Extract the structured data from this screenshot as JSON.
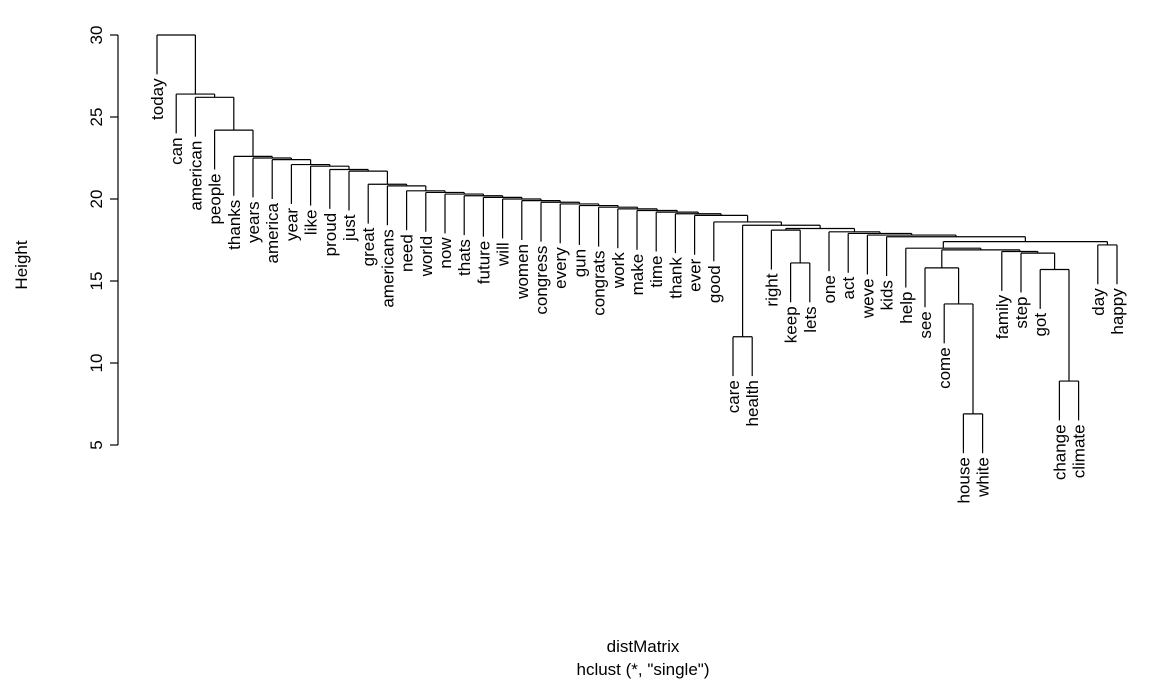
{
  "chart_data": {
    "type": "dendrogram",
    "method": "hclust (*, \"single\")",
    "xlabel": "distMatrix",
    "subtitle": "hclust (*, \"single\")",
    "ylabel": "Height",
    "yticks": [
      5,
      10,
      15,
      20,
      25,
      30
    ],
    "ylim": [
      5,
      30
    ],
    "grid": false,
    "legend": "none",
    "leaf_order": [
      "today",
      "can",
      "american",
      "people",
      "thanks",
      "years",
      "america",
      "year",
      "like",
      "proud",
      "just",
      "great",
      "americans",
      "need",
      "world",
      "now",
      "thats",
      "future",
      "will",
      "women",
      "congress",
      "every",
      "gun",
      "congrats",
      "work",
      "make",
      "time",
      "thank",
      "ever",
      "good",
      "care",
      "health",
      "right",
      "keep",
      "lets",
      "one",
      "act",
      "weve",
      "kids",
      "help",
      "see",
      "come",
      "house",
      "white",
      "family",
      "step",
      "got",
      "change",
      "climate",
      "day",
      "happy"
    ],
    "merges": [
      {
        "id": "m1",
        "left": "house",
        "right": "white",
        "height": 6.9
      },
      {
        "id": "m2",
        "left": "change",
        "right": "climate",
        "height": 8.9
      },
      {
        "id": "m3",
        "left": "care",
        "right": "health",
        "height": 11.6
      },
      {
        "id": "m4",
        "left": "come",
        "right": "m1",
        "height": 13.6
      },
      {
        "id": "m5",
        "left": "see",
        "right": "m4",
        "height": 15.8
      },
      {
        "id": "m6",
        "left": "got",
        "right": "m2",
        "height": 15.7
      },
      {
        "id": "m7",
        "left": "keep",
        "right": "lets",
        "height": 16.1
      },
      {
        "id": "m8",
        "left": "step",
        "right": "m6",
        "height": 16.7
      },
      {
        "id": "m9",
        "left": "family",
        "right": "m8",
        "height": 16.8
      },
      {
        "id": "m10",
        "left": "m5",
        "right": "m9",
        "height": 16.9
      },
      {
        "id": "m11",
        "left": "help",
        "right": "m10",
        "height": 17.0
      },
      {
        "id": "m12",
        "left": "day",
        "right": "happy",
        "height": 17.2
      },
      {
        "id": "m13",
        "left": "m11",
        "right": "m12",
        "height": 17.4
      },
      {
        "id": "m14",
        "left": "kids",
        "right": "m13",
        "height": 17.7
      },
      {
        "id": "m15",
        "left": "weve",
        "right": "m14",
        "height": 17.8
      },
      {
        "id": "m16",
        "left": "act",
        "right": "m15",
        "height": 17.9
      },
      {
        "id": "m17",
        "left": "one",
        "right": "m16",
        "height": 18.0
      },
      {
        "id": "m18",
        "left": "right",
        "right": "m7",
        "height": 18.1
      },
      {
        "id": "m19",
        "left": "m18",
        "right": "m17",
        "height": 18.2
      },
      {
        "id": "m20",
        "left": "m3",
        "right": "m19",
        "height": 18.4
      },
      {
        "id": "m21",
        "left": "good",
        "right": "m20",
        "height": 18.6
      },
      {
        "id": "m22",
        "left": "ever",
        "right": "m21",
        "height": 19.0
      },
      {
        "id": "m23",
        "left": "thank",
        "right": "m22",
        "height": 19.1
      },
      {
        "id": "m24",
        "left": "time",
        "right": "m23",
        "height": 19.2
      },
      {
        "id": "m25",
        "left": "make",
        "right": "m24",
        "height": 19.3
      },
      {
        "id": "m26",
        "left": "work",
        "right": "m25",
        "height": 19.4
      },
      {
        "id": "m27",
        "left": "congrats",
        "right": "m26",
        "height": 19.5
      },
      {
        "id": "m28",
        "left": "gun",
        "right": "m27",
        "height": 19.6
      },
      {
        "id": "m29",
        "left": "every",
        "right": "m28",
        "height": 19.7
      },
      {
        "id": "m30",
        "left": "congress",
        "right": "m29",
        "height": 19.8
      },
      {
        "id": "m31",
        "left": "women",
        "right": "m30",
        "height": 19.9
      },
      {
        "id": "m32",
        "left": "will",
        "right": "m31",
        "height": 20.0
      },
      {
        "id": "m33",
        "left": "future",
        "right": "m32",
        "height": 20.1
      },
      {
        "id": "m34",
        "left": "thats",
        "right": "m33",
        "height": 20.2
      },
      {
        "id": "m35",
        "left": "now",
        "right": "m34",
        "height": 20.3
      },
      {
        "id": "m36",
        "left": "world",
        "right": "m35",
        "height": 20.4
      },
      {
        "id": "m37",
        "left": "need",
        "right": "m36",
        "height": 20.5
      },
      {
        "id": "m38",
        "left": "americans",
        "right": "m37",
        "height": 20.8
      },
      {
        "id": "m39",
        "left": "great",
        "right": "m38",
        "height": 20.9
      },
      {
        "id": "m40",
        "left": "just",
        "right": "m39",
        "height": 21.7
      },
      {
        "id": "m41",
        "left": "proud",
        "right": "m40",
        "height": 21.8
      },
      {
        "id": "m42",
        "left": "like",
        "right": "m41",
        "height": 22.0
      },
      {
        "id": "m43",
        "left": "year",
        "right": "m42",
        "height": 22.1
      },
      {
        "id": "m44",
        "left": "america",
        "right": "m43",
        "height": 22.4
      },
      {
        "id": "m45",
        "left": "years",
        "right": "m44",
        "height": 22.5
      },
      {
        "id": "m46",
        "left": "thanks",
        "right": "m45",
        "height": 22.6
      },
      {
        "id": "m47",
        "left": "people",
        "right": "m46",
        "height": 24.2
      },
      {
        "id": "m48",
        "left": "american",
        "right": "m47",
        "height": 26.2
      },
      {
        "id": "m49",
        "left": "can",
        "right": "m48",
        "height": 26.4
      },
      {
        "id": "m50",
        "left": "today",
        "right": "m49",
        "height": 30.0
      }
    ]
  }
}
